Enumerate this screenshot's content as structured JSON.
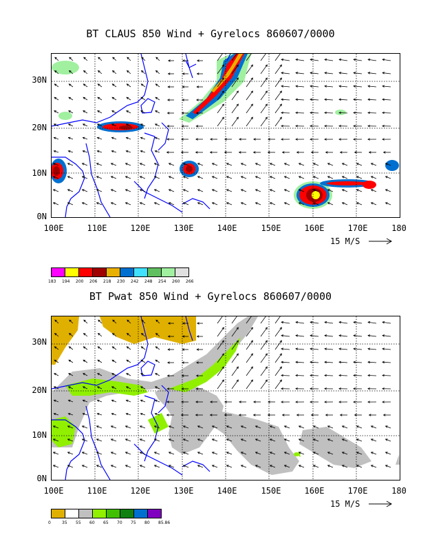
{
  "panels": [
    {
      "title": "BT CLAUS 850 Wind + Gyrelocs 860607/0000",
      "lat_labels": [
        "30N",
        "20N",
        "10N",
        "0N"
      ],
      "lon_labels": [
        "100E",
        "110E",
        "120E",
        "130E",
        "140E",
        "150E",
        "160E",
        "170E",
        "180"
      ],
      "scale_label": "15 M/S",
      "legend": {
        "labels": [
          "183",
          "194",
          "200",
          "206",
          "218",
          "230",
          "242",
          "248",
          "254",
          "260",
          "266"
        ],
        "colors": [
          "#ff00ff",
          "#ffff00",
          "#ff0000",
          "#a00000",
          "#e8b000",
          "#0070d0",
          "#40e0ff",
          "#60c060",
          "#a0f0a0",
          "#e0e0e0"
        ]
      }
    },
    {
      "title": "BT Pwat 850 Wind + Gyrelocs 860607/0000",
      "lat_labels": [
        "30N",
        "20N",
        "10N",
        "0N"
      ],
      "lon_labels": [
        "100E",
        "110E",
        "120E",
        "130E",
        "140E",
        "150E",
        "160E",
        "170E",
        "180"
      ],
      "scale_label": "15 M/S",
      "legend": {
        "labels": [
          "0",
          "35",
          "55",
          "60",
          "65",
          "70",
          "75",
          "80",
          "85.86"
        ],
        "colors": [
          "#e0b000",
          "#ffffff",
          "#c0c0c0",
          "#90f000",
          "#40c000",
          "#108010",
          "#0070d0",
          "#8000c0"
        ]
      }
    }
  ],
  "map_style": {
    "coast_color": "#0000ff",
    "grid_style": "dotted",
    "lat_range": [
      0,
      35
    ],
    "lon_range": [
      100,
      180
    ]
  }
}
